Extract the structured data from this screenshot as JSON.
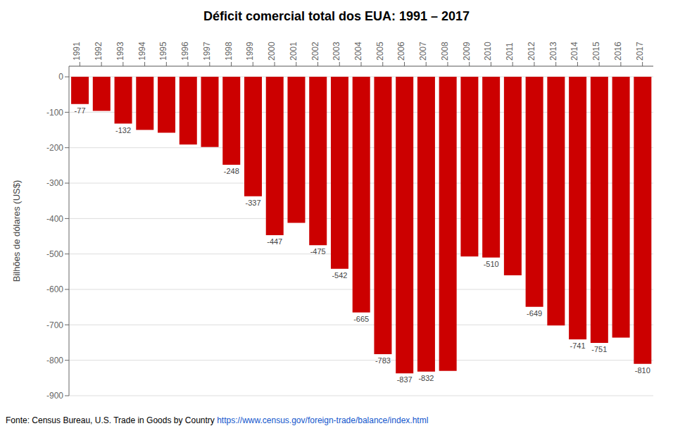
{
  "chart_data": {
    "type": "bar",
    "title": "Déficit comercial total dos EUA: 1991 – 2017",
    "ylabel": "Bilhões de dólares (US$)",
    "categories": [
      "1991",
      "1992",
      "1993",
      "1994",
      "1995",
      "1996",
      "1997",
      "1998",
      "1999",
      "2000",
      "2001",
      "2002",
      "2003",
      "2004",
      "2005",
      "2006",
      "2007",
      "2008",
      "2009",
      "2010",
      "2011",
      "2012",
      "2013",
      "2014",
      "2015",
      "2016",
      "2017"
    ],
    "values": [
      -77,
      -96,
      -132,
      -150,
      -158,
      -191,
      -198,
      -248,
      -337,
      -447,
      -412,
      -475,
      -542,
      -665,
      -783,
      -837,
      -832,
      -830,
      -507,
      -510,
      -560,
      -649,
      -702,
      -741,
      -751,
      -736,
      -810
    ],
    "data_labels": true,
    "value_labels": [
      "-77",
      null,
      "-132",
      null,
      null,
      null,
      null,
      "-248",
      "-337",
      "-447",
      null,
      "-475",
      "-542",
      "-665",
      "-783",
      "-837",
      "-832",
      null,
      null,
      "-510",
      null,
      "-649",
      null,
      "-741",
      "-751",
      null,
      "-810"
    ],
    "color": "#CC0000",
    "ylim": [
      -900,
      30
    ],
    "yticks": [
      0,
      -100,
      -200,
      -300,
      -400,
      -500,
      -600,
      -700,
      -800,
      -900
    ],
    "grid": true,
    "annotations": [
      {
        "text": "Fonte: Census Bureau, U.S. Trade in Goods by Country ",
        "color": "#000000"
      },
      {
        "text": "https://www.census.gov/foreign-trade/balance/index.html",
        "color": "#1155CC"
      }
    ]
  }
}
